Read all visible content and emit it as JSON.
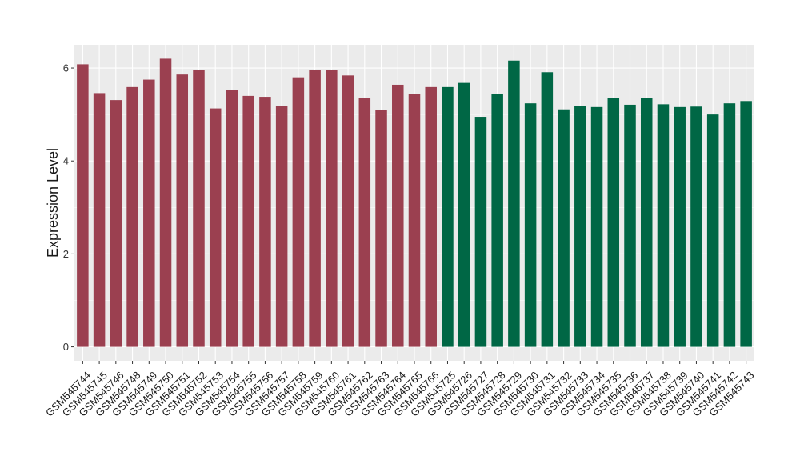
{
  "chart_data": {
    "type": "bar",
    "title": "",
    "xlabel": "",
    "ylabel": "Expression Level",
    "ylim": [
      -0.3,
      6.5
    ],
    "yticks": [
      0,
      2,
      4,
      6
    ],
    "grid": true,
    "legend": "none",
    "colors": {
      "group_a": "#9B4050",
      "group_b": "#006745",
      "panel_bg": "#EBEBEB",
      "grid": "#FFFFFF",
      "text": "#1a1a1a"
    },
    "categories": [
      "GSM545744",
      "GSM545745",
      "GSM545746",
      "GSM545748",
      "GSM545749",
      "GSM545750",
      "GSM545751",
      "GSM545752",
      "GSM545753",
      "GSM545754",
      "GSM545755",
      "GSM545756",
      "GSM545757",
      "GSM545758",
      "GSM545759",
      "GSM545760",
      "GSM545761",
      "GSM545762",
      "GSM545763",
      "GSM545764",
      "GSM545765",
      "GSM545766",
      "GSM545725",
      "GSM545726",
      "GSM545727",
      "GSM545728",
      "GSM545729",
      "GSM545730",
      "GSM545731",
      "GSM545732",
      "GSM545733",
      "GSM545734",
      "GSM545735",
      "GSM545736",
      "GSM545737",
      "GSM545738",
      "GSM545739",
      "GSM545740",
      "GSM545741",
      "GSM545742",
      "GSM545743"
    ],
    "values": [
      6.08,
      5.46,
      5.31,
      5.59,
      5.75,
      6.2,
      5.86,
      5.96,
      5.13,
      5.53,
      5.4,
      5.38,
      5.19,
      5.8,
      5.96,
      5.95,
      5.84,
      5.36,
      5.09,
      5.64,
      5.44,
      5.59,
      5.59,
      5.68,
      4.95,
      5.45,
      6.16,
      5.24,
      5.91,
      5.11,
      5.19,
      5.16,
      5.36,
      5.21,
      5.36,
      5.22,
      5.16,
      5.17,
      5.0,
      5.24,
      5.29
    ],
    "groups": [
      "a",
      "a",
      "a",
      "a",
      "a",
      "a",
      "a",
      "a",
      "a",
      "a",
      "a",
      "a",
      "a",
      "a",
      "a",
      "a",
      "a",
      "a",
      "a",
      "a",
      "a",
      "a",
      "b",
      "b",
      "b",
      "b",
      "b",
      "b",
      "b",
      "b",
      "b",
      "b",
      "b",
      "b",
      "b",
      "b",
      "b",
      "b",
      "b",
      "b",
      "b"
    ]
  }
}
